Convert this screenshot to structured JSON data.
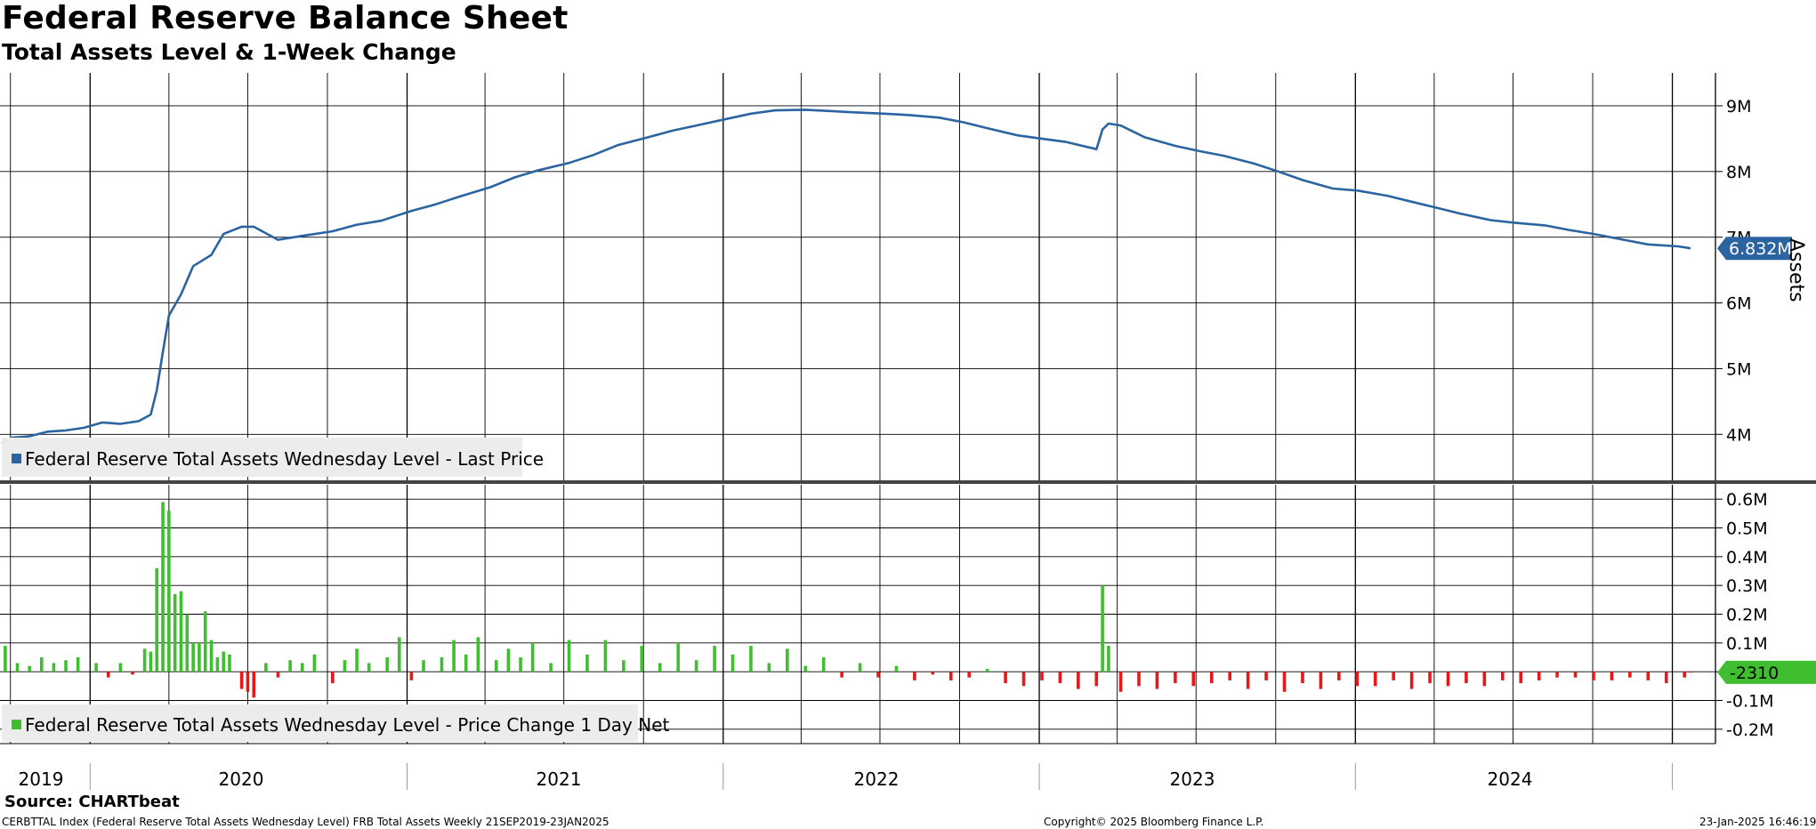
{
  "header": {
    "title": "Federal Reserve Balance Sheet",
    "subtitle": "Total Assets Level & 1-Week Change"
  },
  "footer": {
    "source": "Source: CHARTbeat",
    "index_line": "CERBTTAL Index (Federal Reserve Total Assets Wednesday Level) FRB Total Assets  Weekly 21SEP2019-23JAN2025",
    "copyright": "Copyright© 2025 Bloomberg Finance L.P.",
    "timestamp": "23-Jan-2025 16:46:19"
  },
  "x_axis": {
    "labels": [
      "2019",
      "2020",
      "2021",
      "2022",
      "2023",
      "2024"
    ]
  },
  "colors": {
    "level_line": "#2b64a0",
    "positive_bar": "#3fbf30",
    "negative_bar": "#e81818",
    "level_tag": "#2b64a0",
    "change_tag": "#3fbf30"
  },
  "chart_data": [
    {
      "type": "line",
      "legend": "Federal Reserve Total Assets Wednesday Level - Last Price",
      "ylabel": "Assets",
      "ylim": [
        3.3,
        9.5
      ],
      "y_ticks": [
        4,
        5,
        6,
        7,
        8,
        9
      ],
      "y_tick_labels": [
        "4M",
        "5M",
        "6M",
        "7M",
        "8M",
        "9M"
      ],
      "last_value_label": "6.832M",
      "grid": true,
      "legend_position": "bottom-left",
      "points": [
        [
          "2019-09-21",
          3.86
        ],
        [
          "2019-10-02",
          3.95
        ],
        [
          "2019-10-23",
          3.97
        ],
        [
          "2019-11-13",
          4.04
        ],
        [
          "2019-12-04",
          4.06
        ],
        [
          "2019-12-25",
          4.1
        ],
        [
          "2020-01-15",
          4.18
        ],
        [
          "2020-02-05",
          4.16
        ],
        [
          "2020-02-26",
          4.2
        ],
        [
          "2020-03-11",
          4.3
        ],
        [
          "2020-03-18",
          4.67
        ],
        [
          "2020-03-25",
          5.25
        ],
        [
          "2020-04-01",
          5.81
        ],
        [
          "2020-04-15",
          6.13
        ],
        [
          "2020-04-29",
          6.56
        ],
        [
          "2020-05-20",
          6.73
        ],
        [
          "2020-06-03",
          7.05
        ],
        [
          "2020-06-24",
          7.16
        ],
        [
          "2020-07-08",
          7.16
        ],
        [
          "2020-08-05",
          6.96
        ],
        [
          "2020-09-02",
          7.02
        ],
        [
          "2020-10-07",
          7.09
        ],
        [
          "2020-11-04",
          7.19
        ],
        [
          "2020-12-02",
          7.25
        ],
        [
          "2021-01-06",
          7.4
        ],
        [
          "2021-02-03",
          7.5
        ],
        [
          "2021-03-03",
          7.62
        ],
        [
          "2021-04-07",
          7.76
        ],
        [
          "2021-05-05",
          7.91
        ],
        [
          "2021-06-02",
          8.02
        ],
        [
          "2021-07-07",
          8.13
        ],
        [
          "2021-08-04",
          8.25
        ],
        [
          "2021-09-01",
          8.4
        ],
        [
          "2021-10-06",
          8.52
        ],
        [
          "2021-11-03",
          8.62
        ],
        [
          "2021-12-01",
          8.7
        ],
        [
          "2022-01-05",
          8.8
        ],
        [
          "2022-02-02",
          8.88
        ],
        [
          "2022-03-02",
          8.93
        ],
        [
          "2022-04-06",
          8.94
        ],
        [
          "2022-05-04",
          8.92
        ],
        [
          "2022-06-01",
          8.9
        ],
        [
          "2022-07-06",
          8.88
        ],
        [
          "2022-08-03",
          8.86
        ],
        [
          "2022-09-07",
          8.82
        ],
        [
          "2022-10-05",
          8.75
        ],
        [
          "2022-11-02",
          8.66
        ],
        [
          "2022-12-07",
          8.55
        ],
        [
          "2023-01-04",
          8.5
        ],
        [
          "2023-02-01",
          8.45
        ],
        [
          "2023-03-08",
          8.34
        ],
        [
          "2023-03-15",
          8.64
        ],
        [
          "2023-03-22",
          8.73
        ],
        [
          "2023-04-05",
          8.7
        ],
        [
          "2023-05-03",
          8.52
        ],
        [
          "2023-06-07",
          8.39
        ],
        [
          "2023-07-05",
          8.31
        ],
        [
          "2023-08-02",
          8.24
        ],
        [
          "2023-09-06",
          8.12
        ],
        [
          "2023-10-04",
          8.0
        ],
        [
          "2023-11-01",
          7.87
        ],
        [
          "2023-12-06",
          7.74
        ],
        [
          "2024-01-03",
          7.71
        ],
        [
          "2024-02-07",
          7.63
        ],
        [
          "2024-03-06",
          7.54
        ],
        [
          "2024-04-03",
          7.45
        ],
        [
          "2024-05-01",
          7.36
        ],
        [
          "2024-06-05",
          7.26
        ],
        [
          "2024-07-03",
          7.22
        ],
        [
          "2024-08-07",
          7.18
        ],
        [
          "2024-09-04",
          7.11
        ],
        [
          "2024-10-02",
          7.05
        ],
        [
          "2024-11-06",
          6.96
        ],
        [
          "2024-12-04",
          6.89
        ],
        [
          "2025-01-08",
          6.86
        ],
        [
          "2025-01-22",
          6.83
        ]
      ]
    },
    {
      "type": "bar",
      "legend": "Federal Reserve Total Assets Wednesday Level - Price Change 1 Day Net",
      "ylim": [
        -0.25,
        0.65
      ],
      "y_ticks": [
        -0.2,
        -0.1,
        0,
        0.1,
        0.2,
        0.3,
        0.4,
        0.5,
        0.6
      ],
      "y_tick_labels": [
        "-0.2M",
        "-0.1M",
        "",
        "0.1M",
        "0.2M",
        "0.3M",
        "0.4M",
        "0.5M",
        "0.6M"
      ],
      "last_value_label": "-2310",
      "grid": true,
      "legend_position": "bottom-left",
      "points": [
        [
          "2019-09-25",
          0.09
        ],
        [
          "2019-10-09",
          0.03
        ],
        [
          "2019-10-23",
          0.02
        ],
        [
          "2019-11-06",
          0.05
        ],
        [
          "2019-11-20",
          0.03
        ],
        [
          "2019-12-04",
          0.04
        ],
        [
          "2019-12-18",
          0.05
        ],
        [
          "2020-01-08",
          0.03
        ],
        [
          "2020-01-22",
          -0.02
        ],
        [
          "2020-02-05",
          0.03
        ],
        [
          "2020-02-19",
          -0.01
        ],
        [
          "2020-03-04",
          0.08
        ],
        [
          "2020-03-11",
          0.07
        ],
        [
          "2020-03-18",
          0.36
        ],
        [
          "2020-03-25",
          0.59
        ],
        [
          "2020-04-01",
          0.56
        ],
        [
          "2020-04-08",
          0.27
        ],
        [
          "2020-04-15",
          0.28
        ],
        [
          "2020-04-22",
          0.2
        ],
        [
          "2020-04-29",
          0.1
        ],
        [
          "2020-05-06",
          0.1
        ],
        [
          "2020-05-13",
          0.21
        ],
        [
          "2020-05-20",
          0.11
        ],
        [
          "2020-05-27",
          0.05
        ],
        [
          "2020-06-03",
          0.07
        ],
        [
          "2020-06-10",
          0.06
        ],
        [
          "2020-06-24",
          -0.06
        ],
        [
          "2020-07-01",
          -0.07
        ],
        [
          "2020-07-08",
          -0.09
        ],
        [
          "2020-07-22",
          0.03
        ],
        [
          "2020-08-05",
          -0.02
        ],
        [
          "2020-08-19",
          0.04
        ],
        [
          "2020-09-02",
          0.03
        ],
        [
          "2020-09-16",
          0.06
        ],
        [
          "2020-10-07",
          -0.04
        ],
        [
          "2020-10-21",
          0.04
        ],
        [
          "2020-11-04",
          0.08
        ],
        [
          "2020-11-18",
          0.03
        ],
        [
          "2020-12-09",
          0.05
        ],
        [
          "2020-12-23",
          0.12
        ],
        [
          "2021-01-06",
          -0.03
        ],
        [
          "2021-01-20",
          0.04
        ],
        [
          "2021-02-10",
          0.05
        ],
        [
          "2021-02-24",
          0.11
        ],
        [
          "2021-03-10",
          0.06
        ],
        [
          "2021-03-24",
          0.12
        ],
        [
          "2021-04-14",
          0.04
        ],
        [
          "2021-04-28",
          0.08
        ],
        [
          "2021-05-12",
          0.05
        ],
        [
          "2021-05-26",
          0.1
        ],
        [
          "2021-06-16",
          0.03
        ],
        [
          "2021-07-07",
          0.11
        ],
        [
          "2021-07-28",
          0.06
        ],
        [
          "2021-08-18",
          0.11
        ],
        [
          "2021-09-08",
          0.04
        ],
        [
          "2021-09-29",
          0.09
        ],
        [
          "2021-10-20",
          0.03
        ],
        [
          "2021-11-10",
          0.1
        ],
        [
          "2021-12-01",
          0.04
        ],
        [
          "2021-12-22",
          0.09
        ],
        [
          "2022-01-12",
          0.06
        ],
        [
          "2022-02-02",
          0.09
        ],
        [
          "2022-02-23",
          0.03
        ],
        [
          "2022-03-16",
          0.08
        ],
        [
          "2022-04-06",
          0.02
        ],
        [
          "2022-04-27",
          0.05
        ],
        [
          "2022-05-18",
          -0.02
        ],
        [
          "2022-06-08",
          0.03
        ],
        [
          "2022-06-29",
          -0.02
        ],
        [
          "2022-07-20",
          0.02
        ],
        [
          "2022-08-10",
          -0.03
        ],
        [
          "2022-08-31",
          -0.01
        ],
        [
          "2022-09-21",
          -0.03
        ],
        [
          "2022-10-12",
          -0.02
        ],
        [
          "2022-11-02",
          0.01
        ],
        [
          "2022-11-23",
          -0.04
        ],
        [
          "2022-12-14",
          -0.05
        ],
        [
          "2023-01-04",
          -0.03
        ],
        [
          "2023-01-25",
          -0.04
        ],
        [
          "2023-02-15",
          -0.06
        ],
        [
          "2023-03-08",
          -0.05
        ],
        [
          "2023-03-15",
          0.3
        ],
        [
          "2023-03-22",
          0.09
        ],
        [
          "2023-04-05",
          -0.07
        ],
        [
          "2023-04-26",
          -0.05
        ],
        [
          "2023-05-17",
          -0.06
        ],
        [
          "2023-06-07",
          -0.04
        ],
        [
          "2023-06-28",
          -0.05
        ],
        [
          "2023-07-19",
          -0.04
        ],
        [
          "2023-08-09",
          -0.03
        ],
        [
          "2023-08-30",
          -0.06
        ],
        [
          "2023-09-20",
          -0.03
        ],
        [
          "2023-10-11",
          -0.07
        ],
        [
          "2023-11-01",
          -0.04
        ],
        [
          "2023-11-22",
          -0.06
        ],
        [
          "2023-12-13",
          -0.03
        ],
        [
          "2024-01-03",
          -0.05
        ],
        [
          "2024-01-24",
          -0.05
        ],
        [
          "2024-02-14",
          -0.03
        ],
        [
          "2024-03-06",
          -0.06
        ],
        [
          "2024-03-27",
          -0.04
        ],
        [
          "2024-04-17",
          -0.05
        ],
        [
          "2024-05-08",
          -0.04
        ],
        [
          "2024-05-29",
          -0.05
        ],
        [
          "2024-06-19",
          -0.03
        ],
        [
          "2024-07-10",
          -0.04
        ],
        [
          "2024-07-31",
          -0.03
        ],
        [
          "2024-08-21",
          -0.02
        ],
        [
          "2024-09-11",
          -0.02
        ],
        [
          "2024-10-02",
          -0.03
        ],
        [
          "2024-10-23",
          -0.03
        ],
        [
          "2024-11-13",
          -0.02
        ],
        [
          "2024-12-04",
          -0.03
        ],
        [
          "2024-12-25",
          -0.04
        ],
        [
          "2025-01-15",
          -0.02
        ],
        [
          "2025-01-22",
          -0.002
        ]
      ]
    }
  ]
}
